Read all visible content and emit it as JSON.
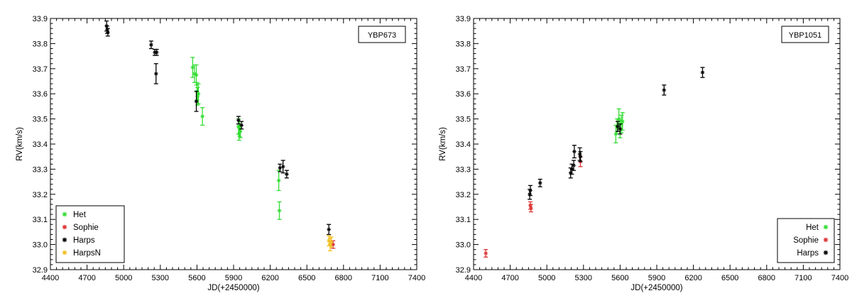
{
  "chart_data": [
    {
      "type": "scatter",
      "title": "YBP673",
      "xlabel": "JD(+2450000)",
      "ylabel": "RV(km/s)",
      "xlim": [
        4400,
        7400
      ],
      "ylim": [
        32.9,
        33.9
      ],
      "xticks": [
        4400,
        4700,
        5000,
        5300,
        5600,
        5900,
        6200,
        6500,
        6800,
        7100,
        7400
      ],
      "yticks": [
        32.9,
        33.0,
        33.1,
        33.2,
        33.3,
        33.4,
        33.5,
        33.6,
        33.7,
        33.8,
        33.9
      ],
      "legend_position": "bottom-left",
      "series": [
        {
          "name": "Het",
          "color": "#33dd33",
          "points": [
            {
              "x": 5565,
              "y": 33.705,
              "err": 0.04
            },
            {
              "x": 5580,
              "y": 33.68,
              "err": 0.035
            },
            {
              "x": 5595,
              "y": 33.675,
              "err": 0.04
            },
            {
              "x": 5600,
              "y": 33.61,
              "err": 0.035
            },
            {
              "x": 5605,
              "y": 33.59,
              "err": 0.035
            },
            {
              "x": 5612,
              "y": 33.6,
              "err": 0.04
            },
            {
              "x": 5645,
              "y": 33.51,
              "err": 0.035
            },
            {
              "x": 5940,
              "y": 33.47,
              "err": 0.03
            },
            {
              "x": 5945,
              "y": 33.44,
              "err": 0.025
            },
            {
              "x": 5950,
              "y": 33.46,
              "err": 0.03
            },
            {
              "x": 5955,
              "y": 33.45,
              "err": 0.025
            },
            {
              "x": 6270,
              "y": 33.255,
              "err": 0.04
            },
            {
              "x": 6275,
              "y": 33.135,
              "err": 0.035
            }
          ]
        },
        {
          "name": "Sophie",
          "color": "#dd3333",
          "points": [
            {
              "x": 6715,
              "y": 33.0,
              "err": 0.015
            }
          ]
        },
        {
          "name": "Harps",
          "color": "#000000",
          "points": [
            {
              "x": 4860,
              "y": 33.87,
              "err": 0.02
            },
            {
              "x": 4865,
              "y": 33.855,
              "err": 0.015
            },
            {
              "x": 4870,
              "y": 33.845,
              "err": 0.015
            },
            {
              "x": 5225,
              "y": 33.795,
              "err": 0.015
            },
            {
              "x": 5255,
              "y": 33.765,
              "err": 0.012
            },
            {
              "x": 5270,
              "y": 33.765,
              "err": 0.012
            },
            {
              "x": 5265,
              "y": 33.68,
              "err": 0.04
            },
            {
              "x": 5595,
              "y": 33.57,
              "err": 0.04
            },
            {
              "x": 5940,
              "y": 33.495,
              "err": 0.015
            },
            {
              "x": 5965,
              "y": 33.475,
              "err": 0.015
            },
            {
              "x": 6280,
              "y": 33.305,
              "err": 0.015
            },
            {
              "x": 6305,
              "y": 33.31,
              "err": 0.025
            },
            {
              "x": 6335,
              "y": 33.28,
              "err": 0.015
            },
            {
              "x": 6680,
              "y": 33.06,
              "err": 0.02
            }
          ]
        },
        {
          "name": "HarpsN",
          "color": "#f0c020",
          "points": [
            {
              "x": 6680,
              "y": 33.015,
              "err": 0.02
            },
            {
              "x": 6690,
              "y": 33.0,
              "err": 0.025
            },
            {
              "x": 6700,
              "y": 33.01,
              "err": 0.02
            }
          ]
        }
      ]
    },
    {
      "type": "scatter",
      "title": "YBP1051",
      "xlabel": "JD(+2450000)",
      "ylabel": "RV(km/s)",
      "xlim": [
        4400,
        7400
      ],
      "ylim": [
        32.9,
        33.9
      ],
      "xticks": [
        4400,
        4700,
        5000,
        5300,
        5600,
        5900,
        6200,
        6500,
        6800,
        7100,
        7400
      ],
      "yticks": [
        32.9,
        33.0,
        33.1,
        33.2,
        33.3,
        33.4,
        33.5,
        33.6,
        33.7,
        33.8,
        33.9
      ],
      "legend_position": "bottom-right",
      "series": [
        {
          "name": "Het",
          "color": "#33dd33",
          "points": [
            {
              "x": 5565,
              "y": 33.44,
              "err": 0.035
            },
            {
              "x": 5575,
              "y": 33.47,
              "err": 0.03
            },
            {
              "x": 5590,
              "y": 33.5,
              "err": 0.04
            },
            {
              "x": 5600,
              "y": 33.46,
              "err": 0.035
            },
            {
              "x": 5610,
              "y": 33.48,
              "err": 0.035
            },
            {
              "x": 5620,
              "y": 33.49,
              "err": 0.035
            }
          ]
        },
        {
          "name": "Sophie",
          "color": "#dd3333",
          "points": [
            {
              "x": 4500,
              "y": 32.965,
              "err": 0.015
            },
            {
              "x": 4865,
              "y": 33.155,
              "err": 0.015
            },
            {
              "x": 4870,
              "y": 33.145,
              "err": 0.015
            },
            {
              "x": 5275,
              "y": 33.33,
              "err": 0.02
            }
          ]
        },
        {
          "name": "Harps",
          "color": "#000000",
          "points": [
            {
              "x": 4860,
              "y": 33.2,
              "err": 0.02
            },
            {
              "x": 4865,
              "y": 33.215,
              "err": 0.02
            },
            {
              "x": 4945,
              "y": 33.245,
              "err": 0.015
            },
            {
              "x": 5195,
              "y": 33.285,
              "err": 0.02
            },
            {
              "x": 5205,
              "y": 33.3,
              "err": 0.02
            },
            {
              "x": 5220,
              "y": 33.315,
              "err": 0.02
            },
            {
              "x": 5225,
              "y": 33.37,
              "err": 0.025
            },
            {
              "x": 5270,
              "y": 33.36,
              "err": 0.025
            },
            {
              "x": 5275,
              "y": 33.35,
              "err": 0.02
            },
            {
              "x": 5580,
              "y": 33.47,
              "err": 0.02
            },
            {
              "x": 5600,
              "y": 33.46,
              "err": 0.02
            },
            {
              "x": 5960,
              "y": 33.615,
              "err": 0.02
            },
            {
              "x": 6275,
              "y": 33.685,
              "err": 0.02
            }
          ]
        }
      ]
    }
  ]
}
